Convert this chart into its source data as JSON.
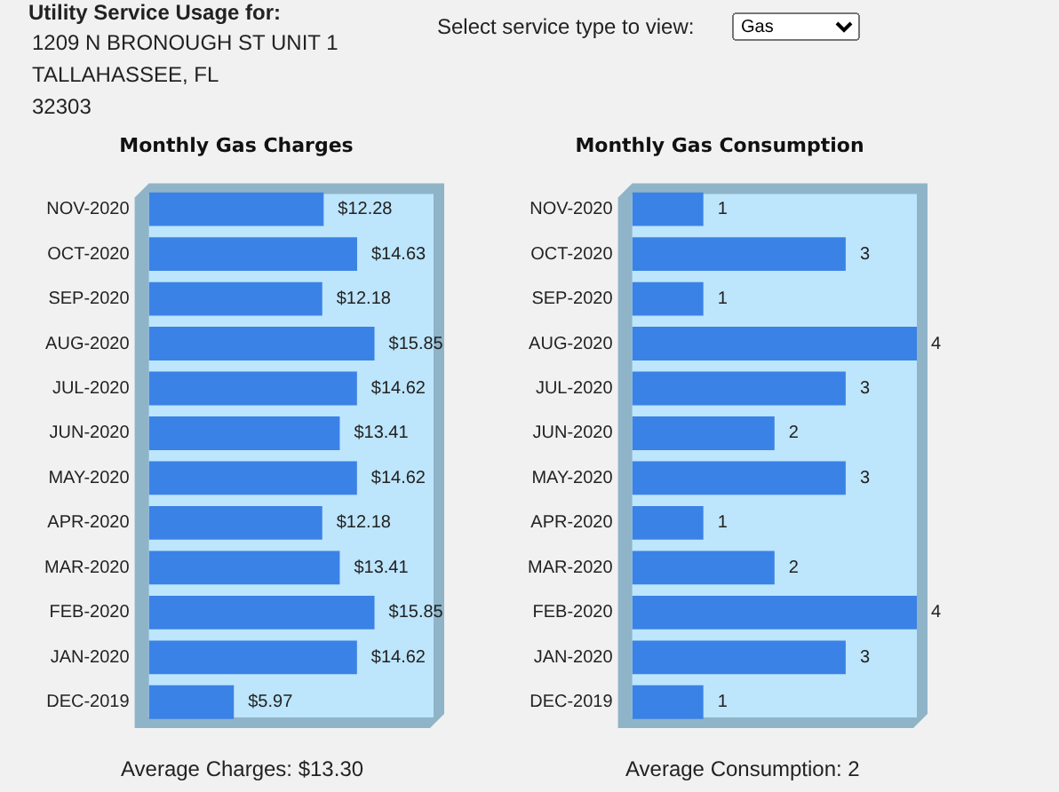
{
  "chart_data": [
    {
      "type": "bar",
      "orientation": "horizontal",
      "title": "Monthly Gas Charges",
      "categories": [
        "NOV-2020",
        "OCT-2020",
        "SEP-2020",
        "AUG-2020",
        "JUL-2020",
        "JUN-2020",
        "MAY-2020",
        "APR-2020",
        "MAR-2020",
        "FEB-2020",
        "JAN-2020",
        "DEC-2019"
      ],
      "values": [
        12.28,
        14.63,
        12.18,
        15.85,
        14.62,
        13.41,
        14.62,
        12.18,
        13.41,
        15.85,
        14.62,
        5.97
      ],
      "value_labels": [
        "$12.28",
        "$14.63",
        "$12.18",
        "$15.85",
        "$14.62",
        "$13.41",
        "$14.62",
        "$12.18",
        "$13.41",
        "$15.85",
        "$14.62",
        "$5.97"
      ],
      "color": "#3b82e6",
      "tick_labels": "y",
      "legend": false,
      "annotations": [
        "Utility Service Usage for:",
        "1209 N BRONOUGH ST UNIT 1",
        "TALLAHASSEE, FL",
        "32303",
        "Average Charges: $13.30"
      ]
    },
    {
      "type": "bar",
      "orientation": "horizontal",
      "title": "Monthly Gas Consumption",
      "categories": [
        "NOV-2020",
        "OCT-2020",
        "SEP-2020",
        "AUG-2020",
        "JUL-2020",
        "JUN-2020",
        "MAY-2020",
        "APR-2020",
        "MAR-2020",
        "FEB-2020",
        "JAN-2020",
        "DEC-2019"
      ],
      "values": [
        1,
        3,
        1,
        4,
        3,
        2,
        3,
        1,
        2,
        4,
        3,
        1
      ],
      "data_labels": true,
      "color": "#3b82e6",
      "tick_labels": "y",
      "legend": false,
      "annotations": [
        "Select service type to view:",
        "Gas",
        "Average Consumption: 2"
      ]
    }
  ]
}
